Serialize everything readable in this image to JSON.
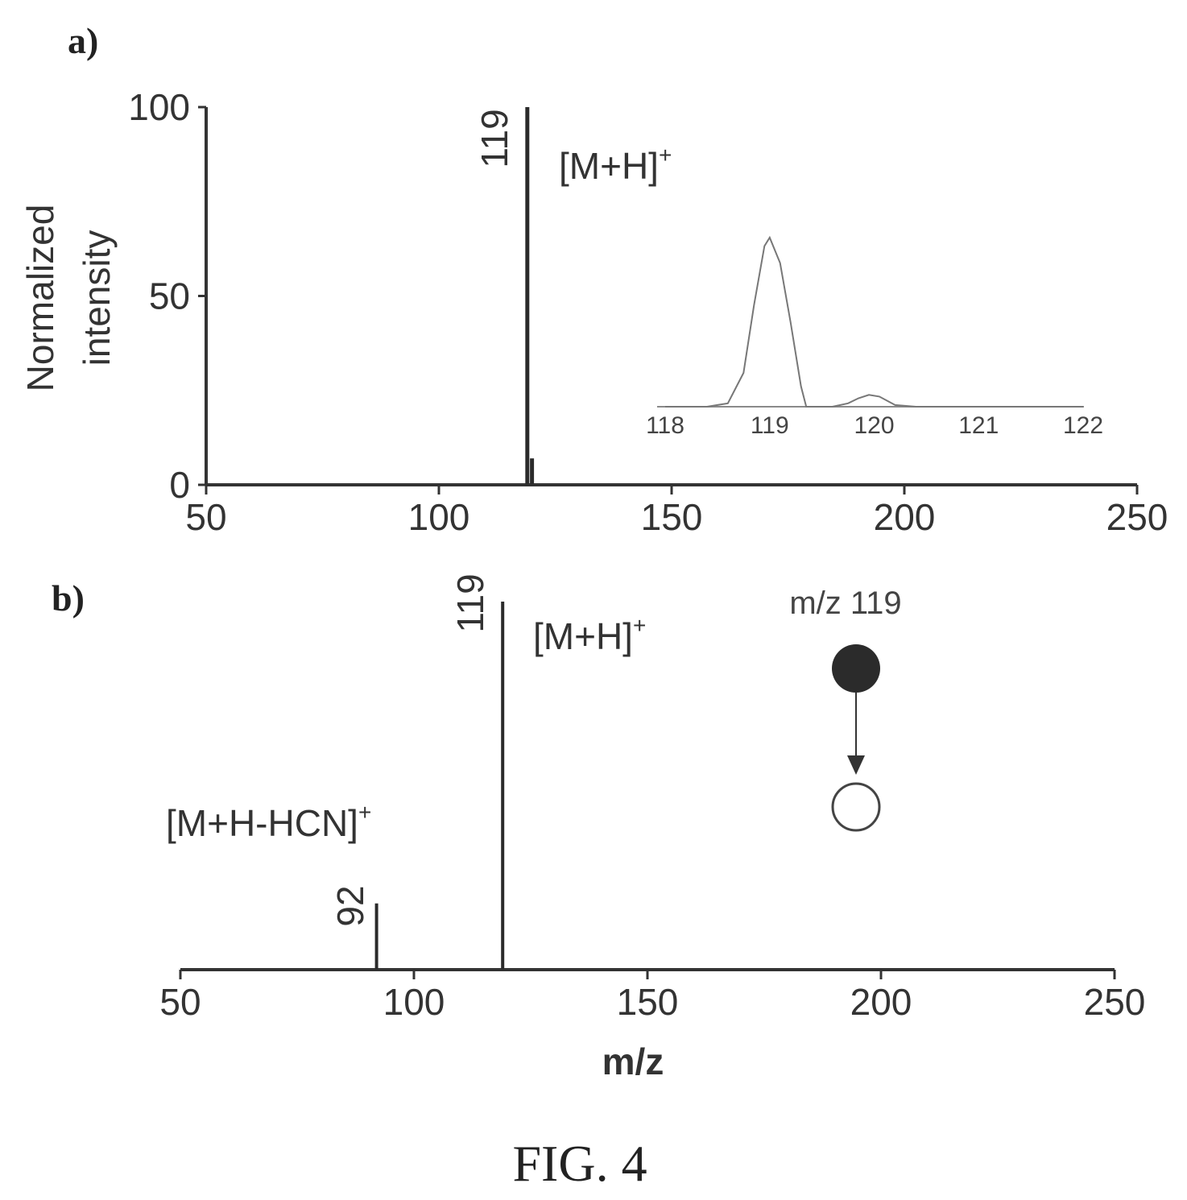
{
  "figure_label": "FIG. 4",
  "colors": {
    "ink": "#2b2b2b",
    "text": "#333333",
    "light": "#8a8a8a",
    "background": "#ffffff"
  },
  "chart_data": [
    {
      "panel": "a)",
      "type": "bar",
      "ylabel_lines": [
        "Normalized",
        "intensity"
      ],
      "xlim": [
        50,
        250
      ],
      "ylim": [
        0,
        100
      ],
      "xticks": [
        50,
        100,
        150,
        200,
        250
      ],
      "xtick_labels": [
        "50",
        "100",
        "150",
        "200",
        "250"
      ],
      "yticks": [
        0,
        50,
        100
      ],
      "ytick_labels": [
        "0",
        "50",
        "100"
      ],
      "peaks": [
        {
          "x": 119,
          "y": 100,
          "label": "119"
        },
        {
          "x": 120,
          "y": 7,
          "label": ""
        }
      ],
      "annotations": [
        {
          "text": "[M+H]",
          "superscript": "+"
        }
      ],
      "inset": {
        "type": "line",
        "xlim": [
          118,
          122
        ],
        "ylim": [
          0,
          100
        ],
        "xticks": [
          118,
          119,
          120,
          121,
          122
        ],
        "xtick_labels": [
          "118",
          "119",
          "120",
          "121",
          "122"
        ],
        "x": [
          118.0,
          118.4,
          118.6,
          118.75,
          118.85,
          118.95,
          119.0,
          119.1,
          119.2,
          119.3,
          119.35,
          119.45,
          119.6,
          119.75,
          119.85,
          119.95,
          120.05,
          120.2,
          120.4,
          121.0,
          122.0
        ],
        "y": [
          0,
          0,
          2,
          20,
          60,
          95,
          100,
          85,
          50,
          12,
          0,
          0,
          0,
          2,
          5,
          7,
          6,
          1,
          0,
          0,
          0
        ]
      }
    },
    {
      "panel": "b)",
      "type": "bar",
      "xlabel": "m/z",
      "xlim": [
        50,
        250
      ],
      "ylim": [
        0,
        100
      ],
      "xticks": [
        50,
        100,
        150,
        200,
        250
      ],
      "xtick_labels": [
        "50",
        "100",
        "150",
        "200",
        "250"
      ],
      "peaks": [
        {
          "x": 92,
          "y": 18,
          "label": "92"
        },
        {
          "x": 119,
          "y": 100,
          "label": "119"
        }
      ],
      "annotations": [
        {
          "text": "[M+H]",
          "superscript": "+"
        },
        {
          "text": "[M+H-HCN]",
          "superscript": "+"
        }
      ],
      "scheme": {
        "label": "m/z 119",
        "from": "filled-circle",
        "to": "open-circle"
      }
    }
  ]
}
